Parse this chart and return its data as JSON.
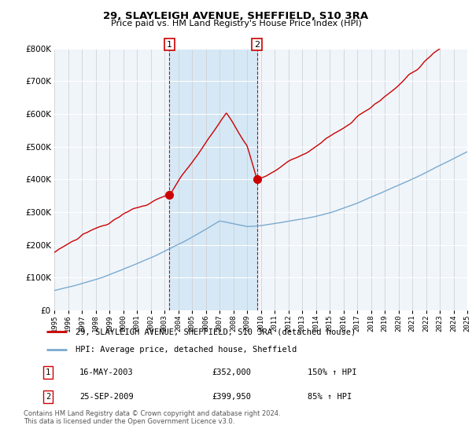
{
  "title": "29, SLAYLEIGH AVENUE, SHEFFIELD, S10 3RA",
  "subtitle": "Price paid vs. HM Land Registry's House Price Index (HPI)",
  "legend_line1": "29, SLAYLEIGH AVENUE, SHEFFIELD, S10 3RA (detached house)",
  "legend_line2": "HPI: Average price, detached house, Sheffield",
  "sale1_date": "16-MAY-2003",
  "sale1_price": "£352,000",
  "sale1_hpi": "150% ↑ HPI",
  "sale1_year": 2003.37,
  "sale1_value": 352000,
  "sale2_date": "25-SEP-2009",
  "sale2_price": "£399,950",
  "sale2_hpi": "85% ↑ HPI",
  "sale2_year": 2009.73,
  "sale2_value": 399950,
  "footer": "Contains HM Land Registry data © Crown copyright and database right 2024.\nThis data is licensed under the Open Government Licence v3.0.",
  "red_color": "#cc0000",
  "blue_color": "#7aaad0",
  "shade_color": "#d6e8f5",
  "grid_color": "#cccccc",
  "bg_color": "#f0f5fa",
  "ylim": [
    0,
    800000
  ],
  "xlim_start": 1995,
  "xlim_end": 2025
}
